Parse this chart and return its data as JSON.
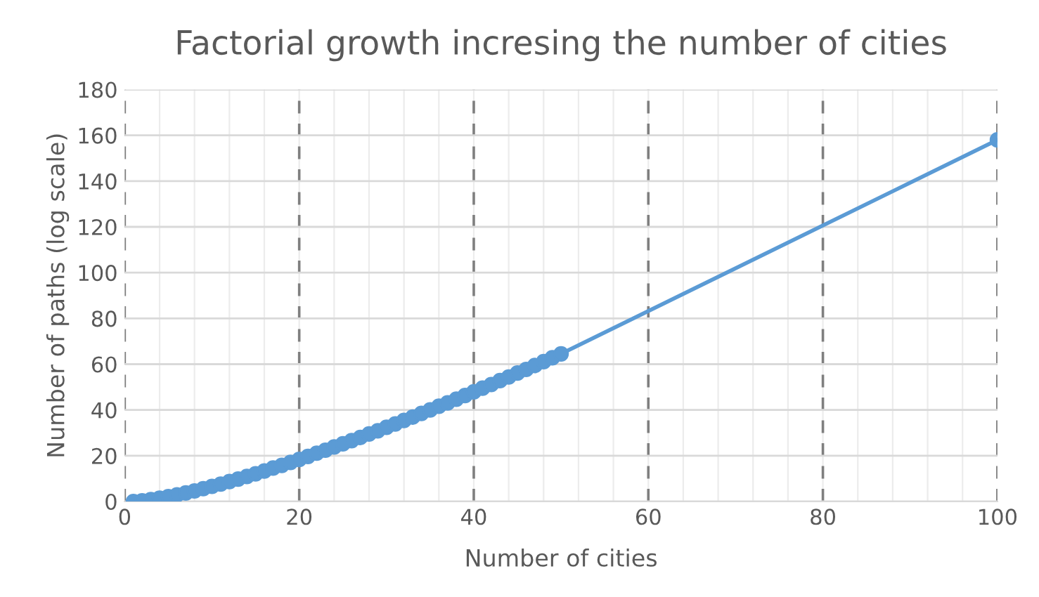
{
  "chart_data": {
    "type": "line",
    "title": "Factorial growth incresing the number of cities",
    "xlabel": "Number of cities",
    "ylabel": "Number of paths (log scale)",
    "x": [
      1,
      2,
      3,
      4,
      5,
      6,
      7,
      8,
      9,
      10,
      11,
      12,
      13,
      14,
      15,
      16,
      17,
      18,
      19,
      20,
      21,
      22,
      23,
      24,
      25,
      26,
      27,
      28,
      29,
      30,
      31,
      32,
      33,
      34,
      35,
      36,
      37,
      38,
      39,
      40,
      41,
      42,
      43,
      44,
      45,
      46,
      47,
      48,
      49,
      50,
      100
    ],
    "series": [
      {
        "color": "#5b9bd5",
        "values": [
          0,
          0.3,
          0.8,
          1.4,
          2.1,
          2.9,
          3.7,
          4.6,
          5.6,
          6.6,
          7.6,
          8.7,
          9.8,
          10.9,
          12.1,
          13.3,
          14.6,
          15.8,
          17.1,
          18.4,
          19.7,
          21.1,
          22.4,
          23.8,
          25.2,
          26.6,
          28.0,
          29.5,
          30.9,
          32.4,
          33.9,
          35.4,
          36.9,
          38.5,
          40.0,
          41.6,
          43.1,
          44.7,
          46.3,
          47.9,
          49.5,
          51.1,
          52.8,
          54.4,
          56.1,
          57.7,
          59.4,
          61.1,
          62.8,
          64.5,
          158.0
        ]
      }
    ],
    "xlim": [
      0,
      100
    ],
    "xticks": [
      0,
      20,
      40,
      60,
      80,
      100
    ],
    "ylim": [
      0,
      180
    ],
    "yticks": [
      0,
      20,
      40,
      60,
      80,
      100,
      120,
      140,
      160,
      180
    ],
    "grid": true,
    "marker": "circle",
    "line_style": "solid"
  }
}
